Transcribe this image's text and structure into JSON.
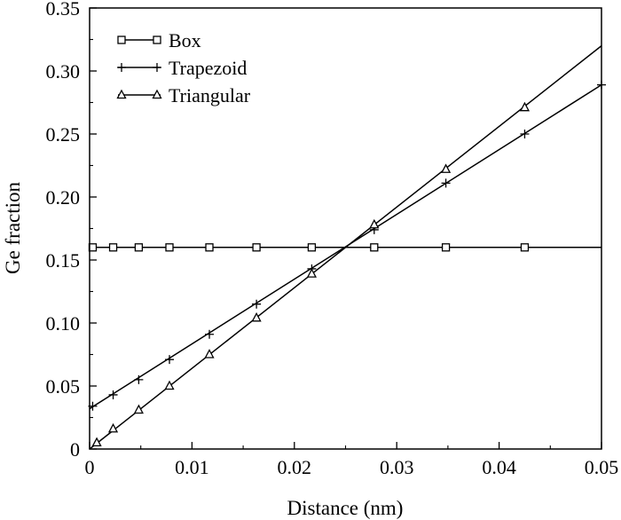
{
  "chart_data": {
    "type": "line",
    "xlabel": "Distance (nm)",
    "ylabel": "Ge fraction",
    "xlim": [
      0,
      0.05
    ],
    "ylim": [
      0,
      0.35
    ],
    "x_ticks": [
      "0",
      "0.01",
      "0.02",
      "0.03",
      "0.04",
      "0.05"
    ],
    "y_ticks": [
      "0",
      "0.05",
      "0.10",
      "0.15",
      "0.20",
      "0.25",
      "0.30",
      "0.35"
    ],
    "x_tick_values": [
      0,
      0.01,
      0.02,
      0.03,
      0.04,
      0.05
    ],
    "y_tick_values": [
      0,
      0.05,
      0.1,
      0.15,
      0.2,
      0.25,
      0.3,
      0.35
    ],
    "grid": false,
    "legend_position": "top-left",
    "series": [
      {
        "name": "Box",
        "marker": "square",
        "line": [
          [
            0,
            0.16
          ],
          [
            0.05,
            0.16
          ]
        ],
        "points": [
          [
            0.0003,
            0.16
          ],
          [
            0.0023,
            0.16
          ],
          [
            0.0048,
            0.16
          ],
          [
            0.0078,
            0.16
          ],
          [
            0.0117,
            0.16
          ],
          [
            0.0163,
            0.16
          ],
          [
            0.0217,
            0.16
          ],
          [
            0.0278,
            0.16
          ],
          [
            0.0348,
            0.16
          ],
          [
            0.0425,
            0.16
          ]
        ]
      },
      {
        "name": "Trapezoid",
        "marker": "plus",
        "line": [
          [
            0,
            0.032
          ],
          [
            0.05,
            0.289
          ]
        ],
        "points": [
          [
            0.0003,
            0.034
          ],
          [
            0.0023,
            0.043
          ],
          [
            0.0048,
            0.055
          ],
          [
            0.0078,
            0.071
          ],
          [
            0.0117,
            0.091
          ],
          [
            0.0163,
            0.115
          ],
          [
            0.0217,
            0.143
          ],
          [
            0.0278,
            0.174
          ],
          [
            0.0348,
            0.211
          ],
          [
            0.0425,
            0.25
          ],
          [
            0.05,
            0.289
          ]
        ]
      },
      {
        "name": "Triangular",
        "marker": "triangle",
        "line": [
          [
            0,
            0.0
          ],
          [
            0.05,
            0.32
          ]
        ],
        "points": [
          [
            0.0007,
            0.005
          ],
          [
            0.0023,
            0.016
          ],
          [
            0.0048,
            0.031
          ],
          [
            0.0078,
            0.05
          ],
          [
            0.0117,
            0.075
          ],
          [
            0.0163,
            0.104
          ],
          [
            0.0217,
            0.139
          ],
          [
            0.0278,
            0.178
          ],
          [
            0.0348,
            0.222
          ],
          [
            0.0425,
            0.271
          ]
        ]
      }
    ]
  },
  "colors": {
    "ink": "#000000",
    "background": "#ffffff"
  }
}
